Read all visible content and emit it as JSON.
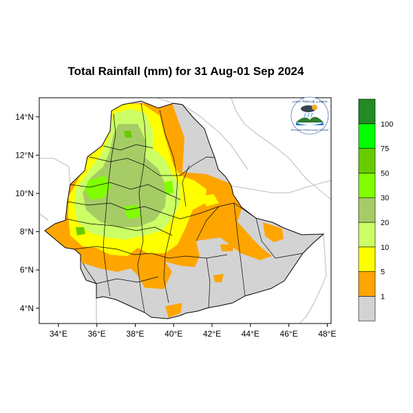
{
  "map": {
    "title": "Total Rainfall (mm) for 31 Aug-01 Sep 2024",
    "region": "Ethiopia",
    "lon_range": [
      33,
      48.2
    ],
    "lat_range": [
      3.2,
      15
    ],
    "lon_ticks": [
      "34°E",
      "36°E",
      "38°E",
      "40°E",
      "42°E",
      "44°E",
      "46°E",
      "48°E"
    ],
    "lat_ticks": [
      "14°N",
      "12°N",
      "10°N",
      "8°N",
      "6°N",
      "4°N"
    ]
  },
  "legend": {
    "levels": [
      "1",
      "5",
      "10",
      "20",
      "30",
      "50",
      "75",
      "100"
    ],
    "colors": [
      "#d3d3d3",
      "#ffa500",
      "#ffff00",
      "#ccff66",
      "#a6cc66",
      "#7fff00",
      "#66cc00",
      "#00ff00",
      "#228b22"
    ]
  },
  "colors": {
    "background": "#d3d3d3",
    "boundary": "#000000",
    "neighbor_border": "#a9a9a9"
  },
  "logo": {
    "top_text": "ኢትዮጵያ ሚቲዎሮሎጂ ኢንስቲትዩት",
    "bottom_text": "Ethiopian Meteorology Institute",
    "emblem": "cloud-rain-mountain-icon"
  }
}
